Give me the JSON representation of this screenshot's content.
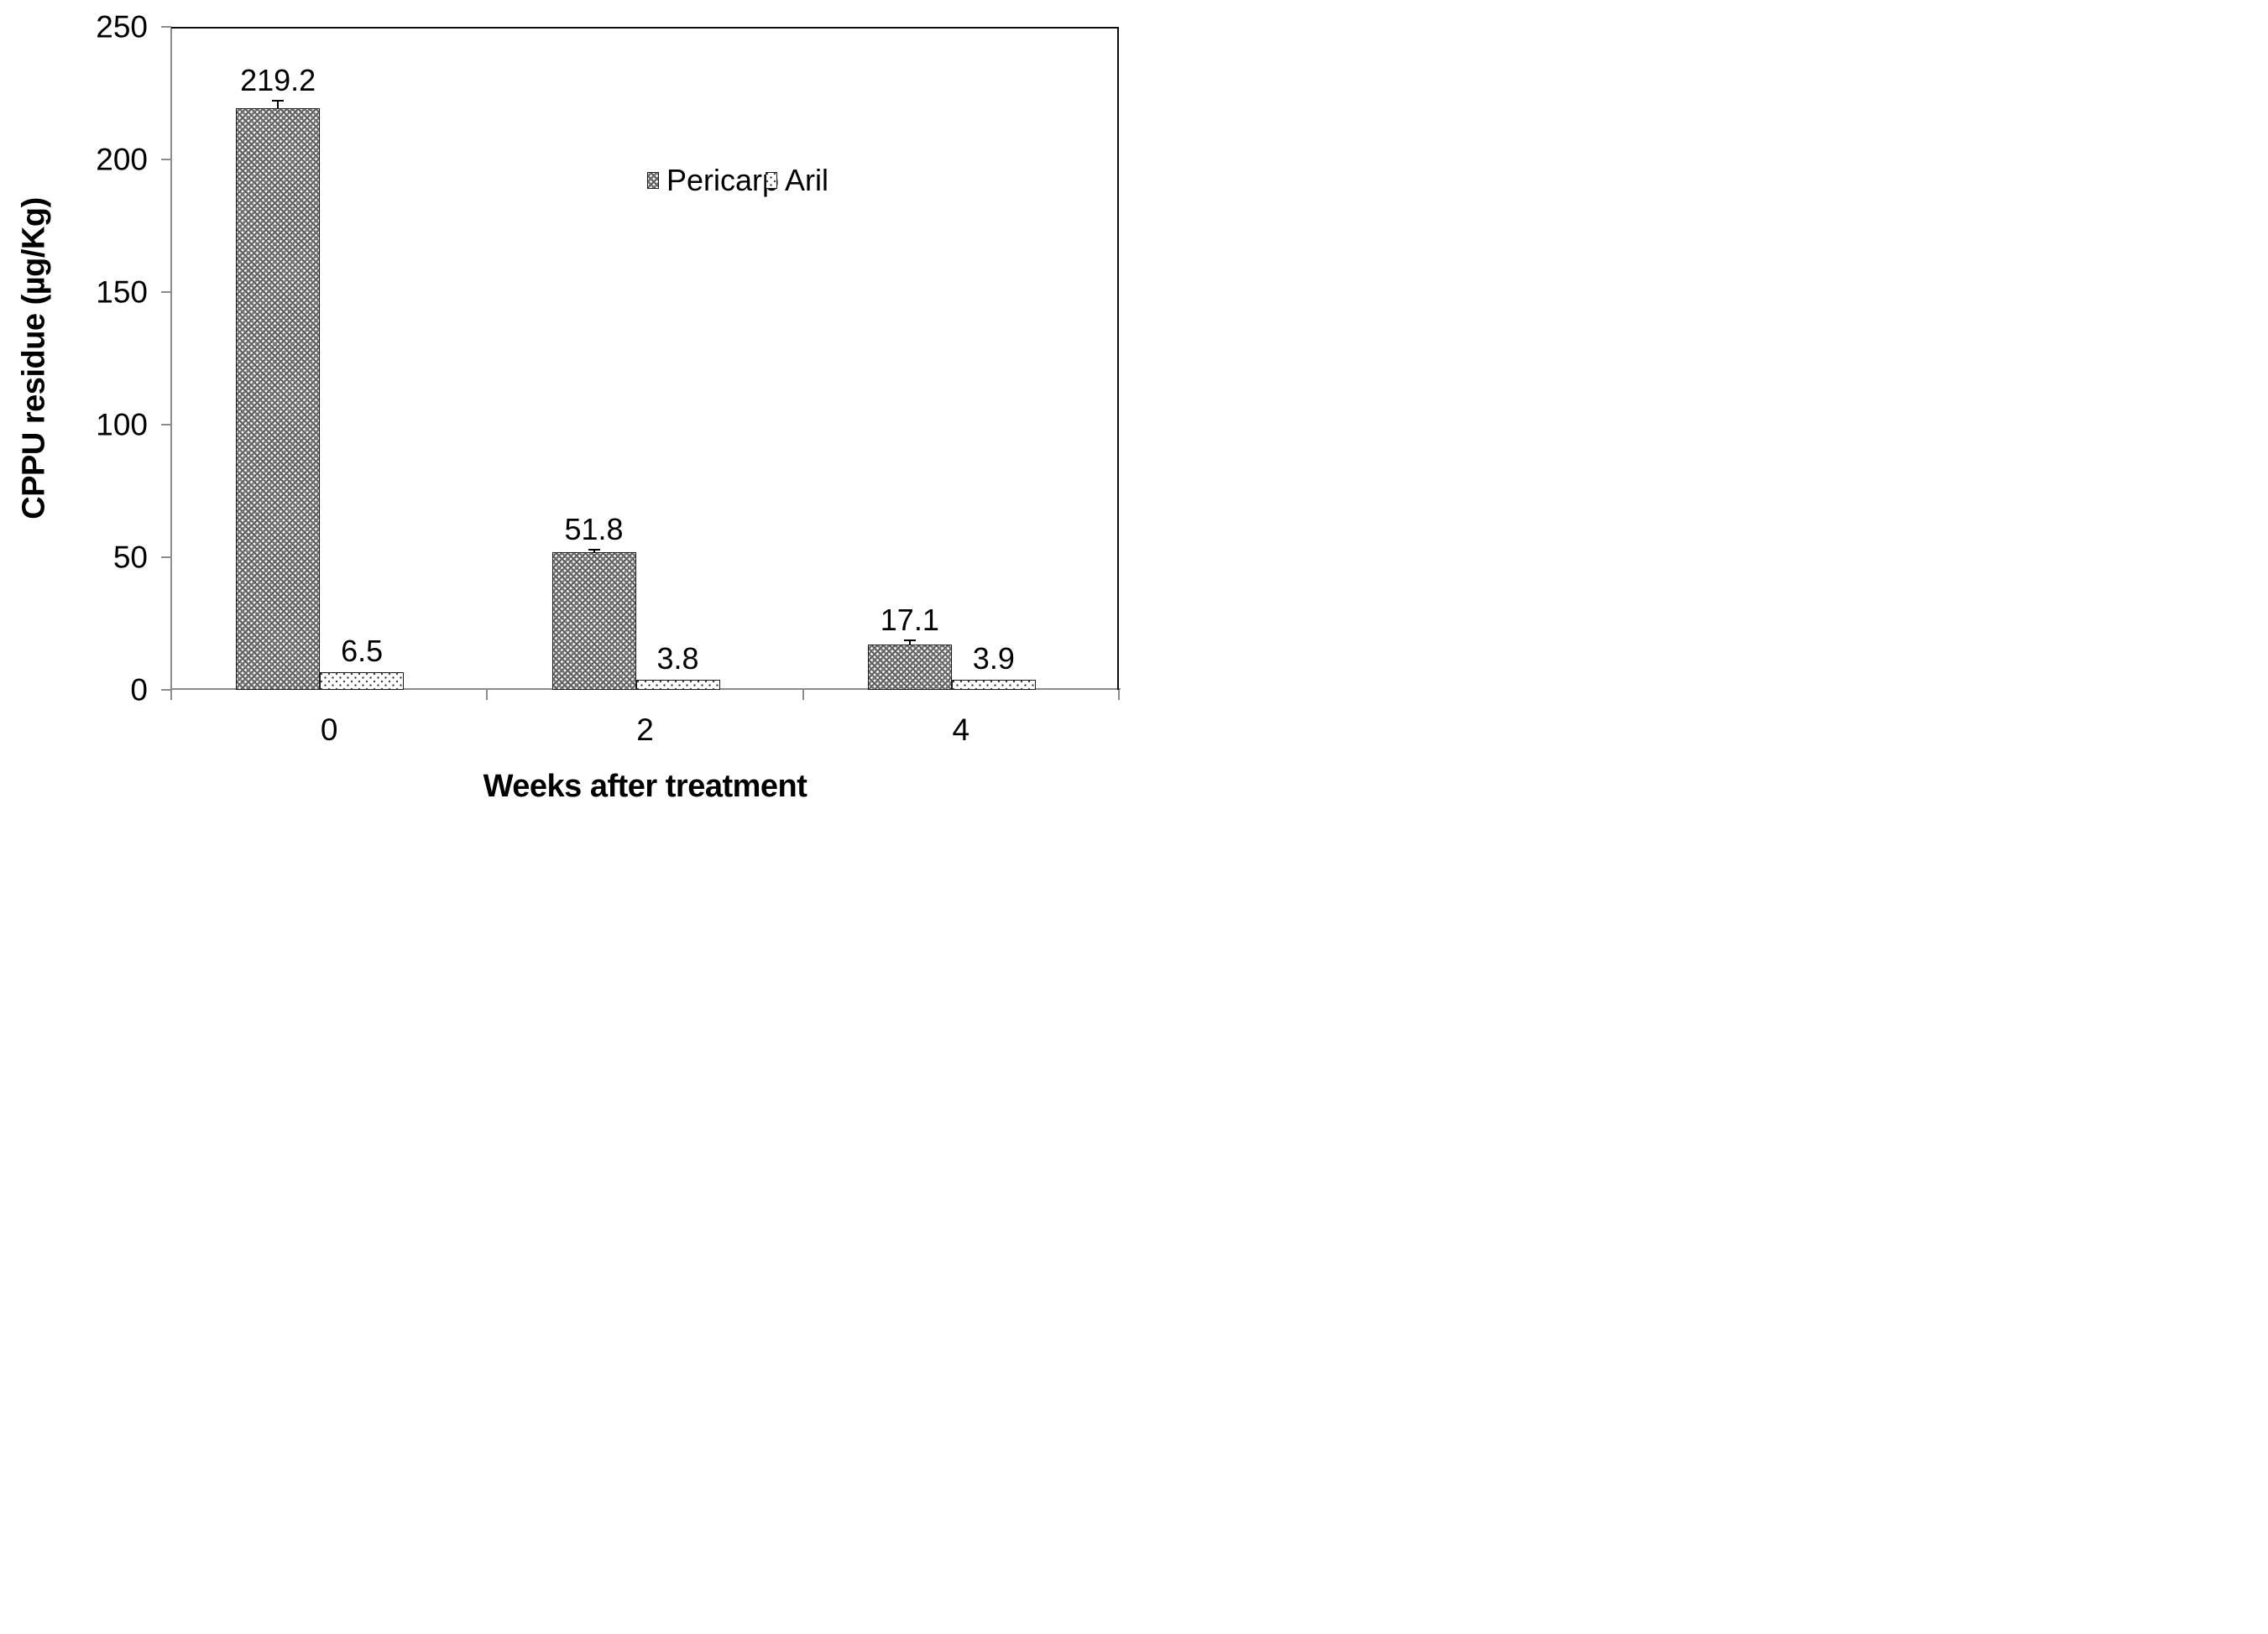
{
  "chart_data": {
    "type": "bar",
    "title": "",
    "xlabel": "Weeks after treatment",
    "ylabel": "CPPU residue (µg/Kg)",
    "categories": [
      "0",
      "2",
      "4"
    ],
    "series": [
      {
        "name": "Pericarp",
        "values": [
          219.2,
          51.8,
          17.1
        ],
        "labels": [
          "219.2",
          "51.8",
          "17.1"
        ],
        "errors_up": [
          2.5,
          0.8,
          1.4
        ],
        "pattern": "dark-dotted-checker"
      },
      {
        "name": "Aril",
        "values": [
          6.5,
          3.8,
          3.9
        ],
        "labels": [
          "6.5",
          "3.8",
          "3.9"
        ],
        "errors_up": [
          0,
          0,
          0
        ],
        "pattern": "light-sparse-dots"
      }
    ],
    "ylim": [
      0,
      250
    ],
    "yticks": [
      "0",
      "50",
      "100",
      "150",
      "200",
      "250"
    ],
    "grid": false,
    "legend_position": "inside-upper-middle",
    "error_bars": "upper whiskers on Pericarp bars only"
  },
  "colors": {
    "background": "#ffffff",
    "text": "#000000",
    "axis_line": "#8c8c8c",
    "plot_border": "#0d0d0d",
    "pericarp_fill_base": "#878787",
    "aril_fill_base": "#ffffff",
    "aril_dot": "#3a3a3a",
    "error_bar": "#000000"
  }
}
